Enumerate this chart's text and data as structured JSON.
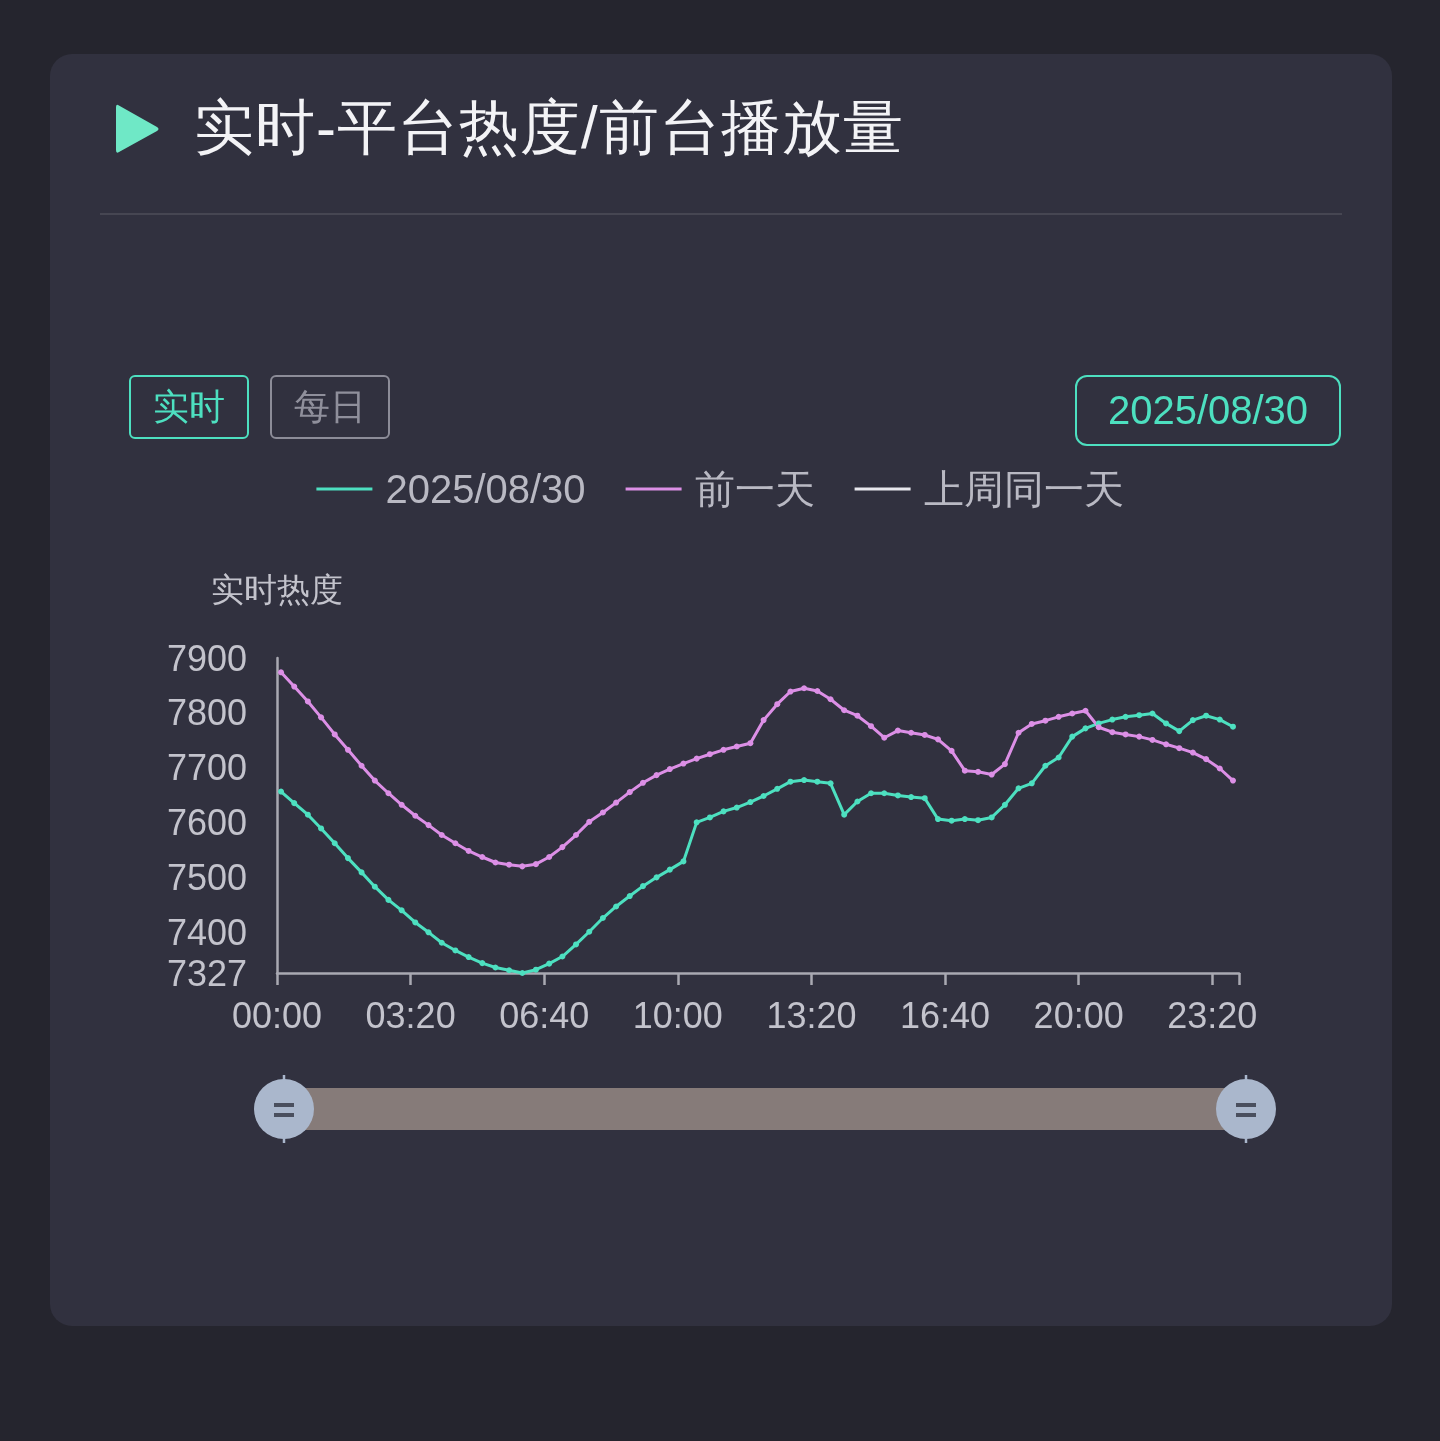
{
  "chart_data": {
    "type": "line",
    "title": "实时-平台热度/前台播放量",
    "ylabel": "实时热度",
    "annotations": [
      "实时",
      "每日",
      "2025/08/30"
    ],
    "x": [
      0.1,
      0.43,
      0.77,
      1.1,
      1.44,
      1.77,
      2.11,
      2.44,
      2.78,
      3.11,
      3.45,
      3.78,
      4.11,
      4.45,
      4.78,
      5.12,
      5.45,
      5.79,
      6.12,
      6.46,
      6.79,
      7.12,
      7.46,
      7.79,
      8.13,
      8.46,
      8.8,
      9.13,
      9.47,
      9.8,
      10.14,
      10.47,
      10.8,
      11.14,
      11.47,
      11.81,
      12.14,
      12.48,
      12.81,
      13.15,
      13.48,
      13.81,
      14.15,
      14.48,
      14.82,
      15.15,
      15.49,
      15.82,
      16.16,
      16.49,
      16.83,
      17.16,
      17.49,
      17.83,
      18.16,
      18.5,
      18.83,
      19.17,
      19.5,
      19.84,
      20.17,
      20.5,
      20.84,
      21.17,
      21.51,
      21.84,
      22.18,
      22.51,
      22.85,
      23.18,
      23.52,
      23.85
    ],
    "series": [
      {
        "name": "2025/08/30",
        "color": "#4de0c0",
        "values": [
          7657,
          7636,
          7615,
          7590,
          7563,
          7536,
          7510,
          7484,
          7460,
          7441,
          7419,
          7401,
          7382,
          7368,
          7356,
          7345,
          7337,
          7332,
          7327,
          7333,
          7344,
          7357,
          7379,
          7402,
          7427,
          7448,
          7467,
          7485,
          7501,
          7515,
          7530,
          7601,
          7610,
          7621,
          7628,
          7638,
          7649,
          7662,
          7675,
          7678,
          7675,
          7672,
          7615,
          7639,
          7654,
          7654,
          7650,
          7647,
          7645,
          7607,
          7604,
          7607,
          7605,
          7610,
          7633,
          7663,
          7672,
          7704,
          7719,
          7757,
          7772,
          7781,
          7788,
          7793,
          7796,
          7799,
          7781,
          7767,
          7787,
          7795,
          7788,
          7775
        ]
      },
      {
        "name": "前一天",
        "color": "#dc8fe6",
        "values": [
          7874,
          7848,
          7821,
          7792,
          7761,
          7733,
          7704,
          7677,
          7654,
          7633,
          7613,
          7596,
          7578,
          7563,
          7549,
          7538,
          7528,
          7524,
          7521,
          7525,
          7538,
          7556,
          7578,
          7602,
          7619,
          7637,
          7656,
          7673,
          7687,
          7698,
          7708,
          7717,
          7725,
          7733,
          7739,
          7745,
          7787,
          7816,
          7839,
          7845,
          7840,
          7825,
          7805,
          7795,
          7776,
          7755,
          7768,
          7764,
          7760,
          7752,
          7731,
          7695,
          7693,
          7688,
          7707,
          7764,
          7780,
          7786,
          7793,
          7799,
          7804,
          7774,
          7765,
          7761,
          7757,
          7751,
          7743,
          7736,
          7728,
          7716,
          7699,
          7677
        ]
      },
      {
        "name": "上周同一天",
        "color": "#e8e8ee",
        "values": [
          null,
          null,
          null,
          null,
          null,
          null,
          null,
          null,
          null,
          null,
          null,
          null,
          null,
          null,
          null,
          null,
          null,
          null,
          null,
          null,
          null,
          null,
          null,
          null,
          null,
          null,
          null,
          null,
          null,
          null,
          null,
          null,
          null,
          null,
          null,
          null,
          null,
          null,
          null,
          null,
          null,
          null,
          null,
          null,
          null,
          null,
          null,
          null,
          null,
          null,
          null,
          null,
          null,
          null,
          null,
          null,
          null,
          null,
          null,
          null,
          null,
          null,
          null,
          null,
          null,
          null,
          null,
          null,
          null,
          null,
          null,
          null
        ]
      }
    ],
    "xlim": [
      0,
      24
    ],
    "xticks": [
      {
        "value": 0,
        "label": "00:00"
      },
      {
        "value": 3.3333,
        "label": "03:20"
      },
      {
        "value": 6.6667,
        "label": "06:40"
      },
      {
        "value": 10,
        "label": "10:00"
      },
      {
        "value": 13.3333,
        "label": "13:20"
      },
      {
        "value": 16.6667,
        "label": "16:40"
      },
      {
        "value": 20,
        "label": "20:00"
      },
      {
        "value": 23.3333,
        "label": "23:20"
      },
      {
        "value": 24,
        "label": null
      }
    ],
    "ylim": [
      7327,
      7900
    ],
    "yticks": [
      7327,
      7400,
      7500,
      7600,
      7700,
      7800,
      7900
    ],
    "grid": false,
    "legend": "top",
    "marker": "circle",
    "line_style": "solid"
  }
}
